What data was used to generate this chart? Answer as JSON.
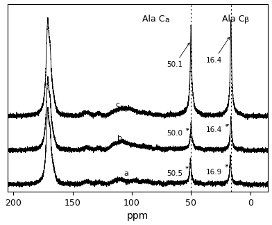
{
  "xlabel": "ppm",
  "xlim": [
    205,
    -15
  ],
  "background_color": "#ffffff",
  "dotted_lines": [
    50.3,
    16.0
  ],
  "offsets": {
    "a": 0.0,
    "b": 0.28,
    "c": 0.56
  },
  "peak_heights": {
    "a": {
      "main": 0.55,
      "ca": 0.18,
      "cb": 0.2
    },
    "b": {
      "main": 0.52,
      "ca": 0.2,
      "cb": 0.24
    },
    "c": {
      "main": 0.7,
      "ca": 0.65,
      "cb": 0.7
    }
  },
  "noise_amplitude": 0.008,
  "noise_seed": 7,
  "xticks": [
    200,
    150,
    100,
    50,
    0
  ],
  "xlabel_fontsize": 10,
  "tick_fontsize": 9,
  "annotation_fontsize": 7.5,
  "label_fontsize": 9
}
